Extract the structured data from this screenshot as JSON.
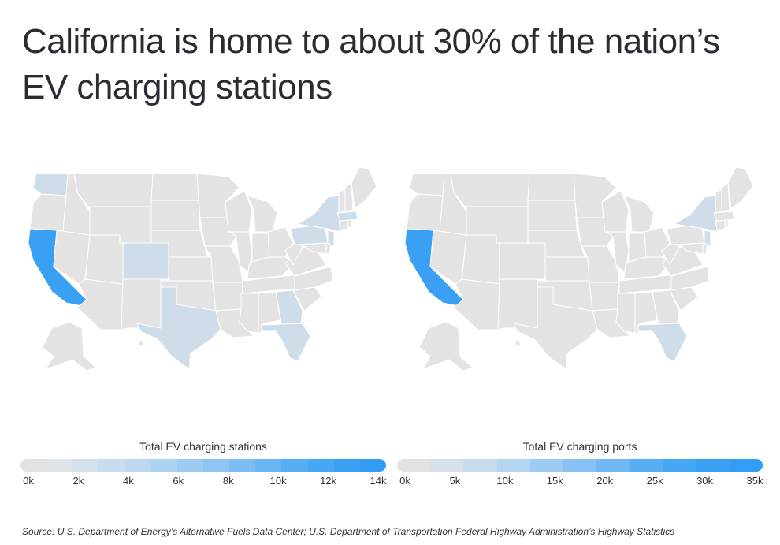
{
  "title": "California is home to about 30% of the nation’s EV charging stations",
  "colors": {
    "base": "#e3e3e3",
    "light": "#cfddea",
    "highlight": "#3aa0f4",
    "border": "#ffffff"
  },
  "maps": [
    {
      "legend_title": "Total EV charging stations",
      "ticks": [
        "0k",
        "2k",
        "4k",
        "6k",
        "8k",
        "10k",
        "12k",
        "14k"
      ],
      "highlighted_state": "California",
      "shaded_states": [
        "Washington",
        "New York",
        "Pennsylvania",
        "Colorado",
        "Texas",
        "Georgia",
        "Florida",
        "Massachusetts",
        "New Jersey"
      ],
      "legend_colors": [
        "#e2e2e2",
        "#dfe4ea",
        "#d4e0ec",
        "#c8dcef",
        "#bcd7f0",
        "#aed2f1",
        "#9fcbf2",
        "#8ec4f2",
        "#7bbcf3",
        "#69b5f3",
        "#56adf4",
        "#46a7f4",
        "#3aa0f4",
        "#329cf4"
      ]
    },
    {
      "legend_title": "Total EV charging ports",
      "ticks": [
        "0k",
        "5k",
        "10k",
        "15k",
        "20k",
        "25k",
        "30k",
        "35k"
      ],
      "highlighted_state": "California",
      "shaded_states": [
        "New York",
        "Florida",
        "New Jersey"
      ],
      "legend_colors": [
        "#e2e2e2",
        "#d6e1ec",
        "#c8dcef",
        "#b4d4f1",
        "#9ecbf2",
        "#88c1f3",
        "#6fb8f3",
        "#58aef4",
        "#46a7f4",
        "#3aa0f4",
        "#339cf4"
      ]
    }
  ],
  "source": "Source:  U.S. Department of Energy’s Alternative Fuels Data Center; U.S. Department of Transportation Federal Highway Administration’s Highway Statistics"
}
